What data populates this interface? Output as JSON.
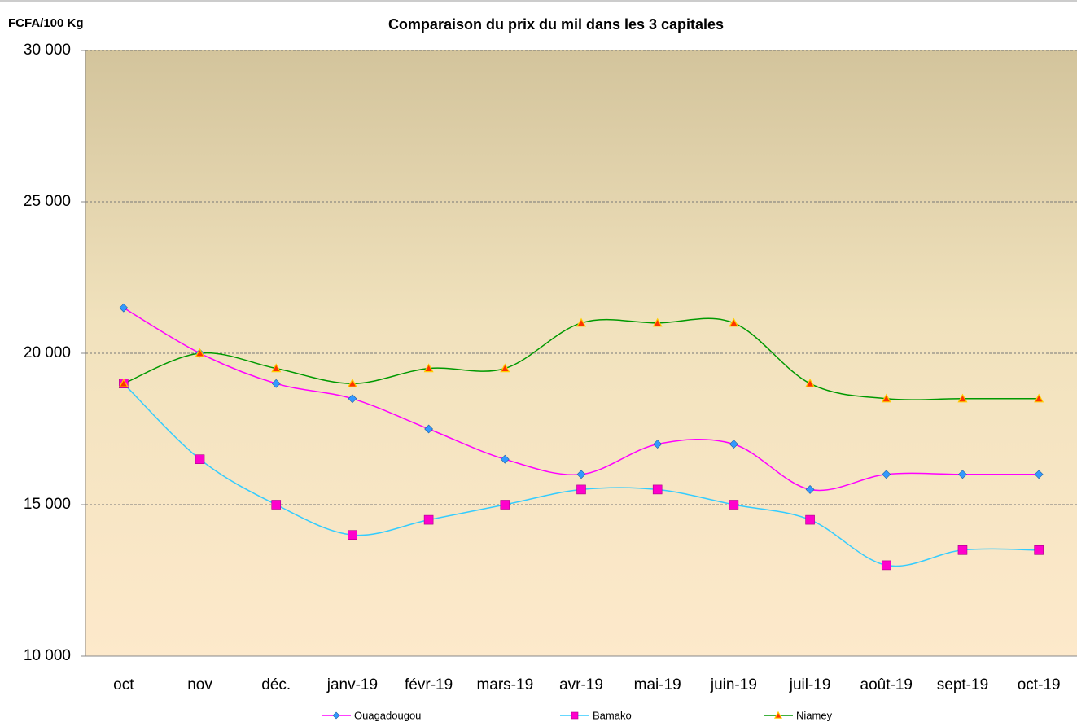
{
  "chart_data": {
    "type": "line",
    "title": "Comparaison du prix du mil dans les 3 capitales",
    "y_label": "FCFA/100 Kg",
    "categories": [
      "oct",
      "nov",
      "déc.",
      "janv-19",
      "févr-19",
      "mars-19",
      "avr-19",
      "mai-19",
      "juin-19",
      "juil-19",
      "août-19",
      "sept-19",
      "oct-19"
    ],
    "series": [
      {
        "name": "Ouagadougou",
        "color": "#ff00ff",
        "marker": "diamond",
        "marker_color": "#3399ff",
        "values": [
          21500,
          20000,
          19000,
          18500,
          17500,
          16500,
          16000,
          17000,
          17000,
          15500,
          16000,
          16000,
          16000
        ]
      },
      {
        "name": "Bamako",
        "color": "#33ccff",
        "marker": "square",
        "marker_color": "#ff00cc",
        "values": [
          19000,
          16500,
          15000,
          14000,
          14500,
          15000,
          15500,
          15500,
          15000,
          14500,
          13000,
          13500,
          13500
        ]
      },
      {
        "name": "Niamey",
        "color": "#009900",
        "marker": "triangle",
        "marker_color": "#ff3300",
        "values": [
          19000,
          20000,
          19500,
          19000,
          19500,
          19500,
          21000,
          21000,
          21000,
          19000,
          18500,
          18500,
          18500
        ]
      }
    ],
    "ylim": [
      10000,
      30000
    ],
    "yticks": [
      {
        "value": 10000,
        "label": "10 000"
      },
      {
        "value": 15000,
        "label": "15 000"
      },
      {
        "value": 20000,
        "label": "20 000"
      },
      {
        "value": 25000,
        "label": "25 000"
      },
      {
        "value": 30000,
        "label": "30 000"
      }
    ],
    "grid": true,
    "smooth": true,
    "legend": "bottom"
  }
}
